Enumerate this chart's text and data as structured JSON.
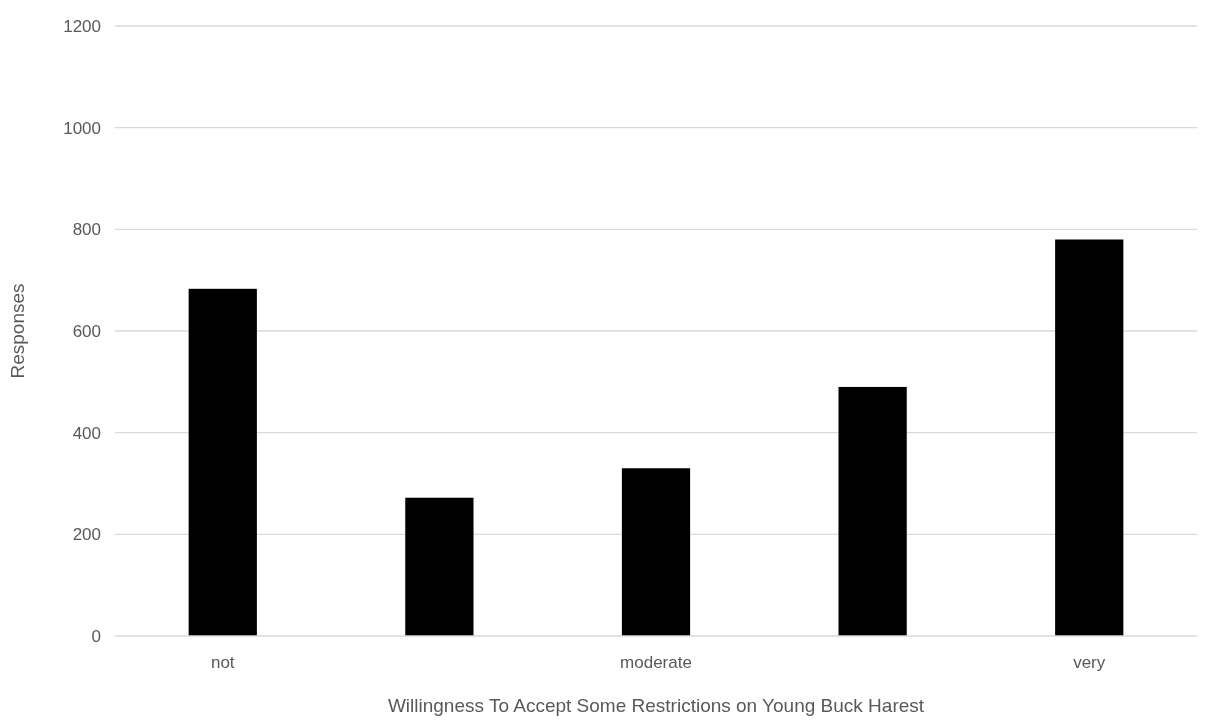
{
  "chart_data": {
    "type": "bar",
    "categories": [
      "not",
      null,
      "moderate",
      null,
      "very"
    ],
    "values": [
      683,
      272,
      330,
      490,
      780
    ],
    "color": "#000000",
    "xlabel": "Willingness To Accept Some Restrictions on Young Buck Harest",
    "ylabel": "Responses",
    "ylim": [
      0,
      1200
    ],
    "yticks": [
      0,
      200,
      400,
      600,
      800,
      1000,
      1200
    ],
    "grid": "y"
  }
}
